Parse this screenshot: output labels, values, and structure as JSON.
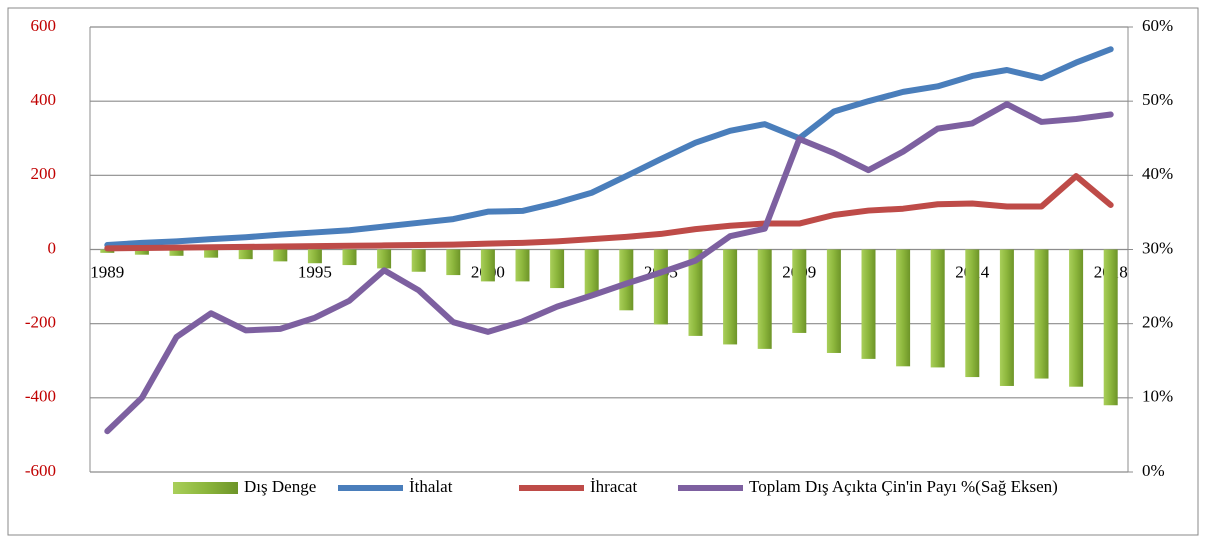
{
  "chart_data": {
    "type": "bar",
    "categories": [
      "1989",
      null,
      null,
      null,
      null,
      null,
      "1995",
      null,
      null,
      null,
      null,
      "2000",
      null,
      null,
      null,
      null,
      "2005",
      null,
      null,
      null,
      "2009",
      null,
      null,
      null,
      null,
      "2014",
      null,
      null,
      null,
      "2018"
    ],
    "series": [
      {
        "name": "Dış Denge",
        "type": "bar",
        "color": "#8cb63c",
        "values": [
          -9,
          -14,
          -17,
          -22,
          -26,
          -32,
          -37,
          -42,
          -51,
          -60,
          -69,
          -86,
          -86,
          -104,
          -125,
          -164,
          -202,
          -233,
          -256,
          -268,
          -225,
          -279,
          -295,
          -315,
          -318,
          -344,
          -368,
          -348,
          -370,
          -420
        ]
      },
      {
        "name": "İthalat",
        "type": "line",
        "color": "#4a7ebb",
        "values": [
          12,
          18,
          22,
          28,
          33,
          40,
          46,
          52,
          62,
          72,
          82,
          102,
          104,
          126,
          153,
          198,
          244,
          288,
          320,
          338,
          300,
          372,
          400,
          425,
          440,
          468,
          484,
          462,
          504,
          540
        ]
      },
      {
        "name": "İhracat",
        "type": "line",
        "color": "#be4b48",
        "values": [
          3,
          4,
          5,
          6,
          7,
          8,
          9,
          10,
          11,
          12,
          13,
          16,
          18,
          22,
          28,
          34,
          42,
          55,
          64,
          70,
          70,
          93,
          105,
          110,
          122,
          124,
          116,
          116,
          198,
          120
        ]
      },
      {
        "name": "Toplam Dış Açıkta Çin'in Payı %(Sağ Eksen)",
        "type": "line",
        "axis": "y2",
        "color": "#7d60a0",
        "values": [
          5.5,
          10,
          18.2,
          21.4,
          19.1,
          19.3,
          20.8,
          23.1,
          27.2,
          24.5,
          20.2,
          18.9,
          20.3,
          22.3,
          23.8,
          25.4,
          26.9,
          28.5,
          31.8,
          32.8,
          44.9,
          43,
          40.7,
          43.2,
          46.3,
          47,
          49.6,
          47.2,
          47.6,
          48.2
        ]
      }
    ],
    "ylim": [
      -600,
      600
    ],
    "yticks": [
      -600,
      -400,
      -200,
      0,
      200,
      400,
      600
    ],
    "y2lim": [
      0,
      60
    ],
    "y2ticks": [
      {
        "value": 0,
        "label": "0%"
      },
      {
        "value": 10,
        "label": "10%"
      },
      {
        "value": 20,
        "label": "20%"
      },
      {
        "value": 30,
        "label": "30%"
      },
      {
        "value": 40,
        "label": "40%"
      },
      {
        "value": 50,
        "label": "50%"
      },
      {
        "value": 60,
        "label": "60%"
      }
    ],
    "grid": true,
    "legend": "bottom"
  }
}
